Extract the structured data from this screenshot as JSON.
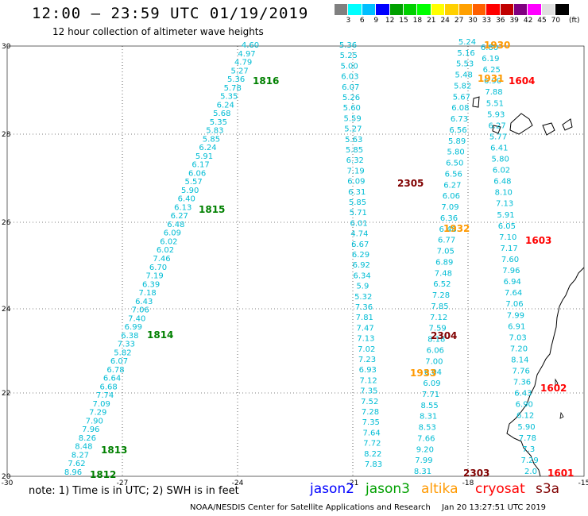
{
  "title": "12:00 – 23:59 UTC 01/19/2019",
  "subtitle": "12 hour collection of altimeter wave heights",
  "colorbar": {
    "unit": "(ft)",
    "ticks": [
      "3",
      "6",
      "9",
      "12",
      "15",
      "18",
      "21",
      "24",
      "27",
      "30",
      "33",
      "36",
      "39",
      "42",
      "45",
      "70"
    ],
    "colors": [
      "#808080",
      "#00ffff",
      "#00bfff",
      "#0000ff",
      "#00a000",
      "#00d000",
      "#00ff00",
      "#ffff00",
      "#ffd000",
      "#ffa000",
      "#ff6000",
      "#ff0000",
      "#c00000",
      "#800080",
      "#ff00ff",
      "#e0e0e0",
      "#000000"
    ]
  },
  "axes": {
    "lon_labels": [
      "-30",
      "-27",
      "-24",
      "-21",
      "-18",
      "-15"
    ],
    "lat_labels": [
      "30",
      "28",
      "26",
      "24",
      "22",
      "20"
    ]
  },
  "tracks": [
    {
      "id": "west-descending",
      "color": "#00bcd4",
      "values": [
        "4.60",
        "4.97",
        "4.79",
        "5.27",
        "5.36",
        "5.78",
        "5.35",
        "6.24",
        "5.68",
        "5.35",
        "5.83",
        "5.85",
        "6.24",
        "5.91",
        "6.17",
        "6.06",
        "5.57",
        "5.90",
        "6.40",
        "6.13",
        "6.27",
        "6.48",
        "6.09",
        "6.02",
        "6.02",
        "7.46",
        "6.70",
        "7.19",
        "6.39",
        "7.18",
        "6.43",
        "7.06",
        "7.40",
        "6.99",
        "6.38",
        "7.33",
        "5.82",
        "6.07",
        "6.78",
        "6.64",
        "6.68",
        "7.74",
        "7.09",
        "7.29",
        "7.90",
        "7.96",
        "8.26",
        "8.48",
        "8.27",
        "7.62",
        "8.96"
      ],
      "times": [
        "1816",
        "1815",
        "1814",
        "1813",
        "1812"
      ]
    },
    {
      "id": "central-a",
      "color": "#00bcd4",
      "values": [
        "5.36",
        "5.25",
        "5.00",
        "6.03",
        "6.07",
        "5.26",
        "5.60",
        "5.59",
        "5.27",
        "5.63",
        "5.85",
        "6.32",
        "7.19",
        "6.09",
        "6.31",
        "5.85",
        "5.71",
        "6.01",
        "4.74",
        "6.67",
        "6.29",
        "6.92",
        "6.34",
        "5.9",
        "5.32",
        "7.36",
        "7.81",
        "7.47",
        "7.13",
        "7.02",
        "7.23",
        "6.93",
        "7.12",
        "7.35",
        "7.52",
        "7.28",
        "7.35",
        "7.64",
        "7.72",
        "8.22",
        "7.83"
      ]
    },
    {
      "id": "central-b",
      "color": "#00bcd4",
      "values": [
        "5.24",
        "5.16",
        "5.53",
        "5.48",
        "5.82",
        "5.67",
        "6.08",
        "6.73",
        "6.56",
        "5.89",
        "5.80",
        "6.50",
        "6.56",
        "6.27",
        "6.06",
        "7.09",
        "6.36",
        "6.48",
        "6.77",
        "7.05",
        "6.89",
        "7.48",
        "6.52",
        "7.28",
        "7.85",
        "7.12",
        "7.59",
        "8.18",
        "6.06",
        "7.00",
        "6.04",
        "6.09",
        "7.71",
        "8.55",
        "8.31",
        "8.53",
        "7.66",
        "9.20",
        "7.99",
        "8.31"
      ],
      "times": [
        "2305",
        "1932",
        "2304",
        "1933",
        "2303",
        "1930",
        "1931"
      ]
    },
    {
      "id": "east",
      "color": "#00bcd4",
      "values": [
        "6.80",
        "6.19",
        "6.25",
        "6.90",
        "7.88",
        "5.51",
        "5.93",
        "6.27",
        "5.77",
        "6.41",
        "5.80",
        "6.02",
        "6.48",
        "8.10",
        "7.13",
        "5.91",
        "6.05",
        "7.10",
        "7.17",
        "7.60",
        "7.96",
        "6.94",
        "7.64",
        "7.06",
        "7.99",
        "6.91",
        "7.03",
        "7.20",
        "8.14",
        "7.76",
        "7.36",
        "6.43",
        "6.90",
        "6.12",
        "5.90",
        "7.78",
        "7.3",
        "7.29",
        "2.0"
      ],
      "times": [
        "1604",
        "1603",
        "1602",
        "1601"
      ]
    }
  ],
  "footer": {
    "note": "note:  1) Time is in UTC;  2) SWH is in feet",
    "satellites": [
      {
        "name": "jason2",
        "color": "#0000ff"
      },
      {
        "name": "jason3",
        "color": "#00a000"
      },
      {
        "name": "altika",
        "color": "#ff9900"
      },
      {
        "name": "cryosat",
        "color": "#ff0000"
      },
      {
        "name": "s3a",
        "color": "#800000"
      }
    ],
    "credit": "NOAA/NESDIS Center for Satellite Applications and Research",
    "stamp": "Jan 20 13:27:51 UTC 2019"
  }
}
